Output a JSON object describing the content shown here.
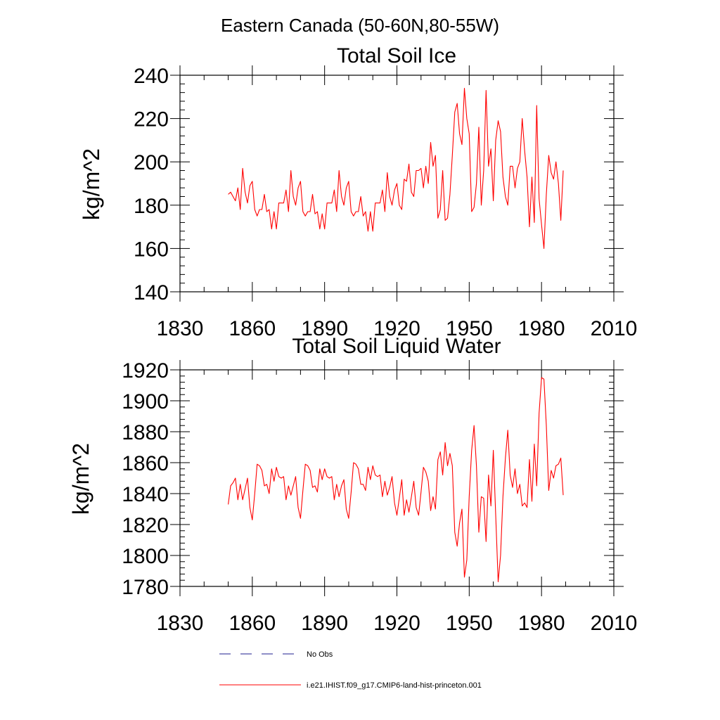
{
  "page": {
    "title": "Eastern Canada (50-60N,80-55W)"
  },
  "legend": {
    "items": [
      {
        "label": "No Obs",
        "color": "#1f1f8f",
        "style": "dashed"
      },
      {
        "label": "i.e21.IHIST.f09_g17.CMIP6-land-hist-princeton.001",
        "color": "#ff0000",
        "style": "solid"
      }
    ]
  },
  "chart_data": [
    {
      "type": "line",
      "title": "Total Soil Ice",
      "ylabel": "kg/m^2",
      "xlim": [
        1830,
        2010
      ],
      "ylim": [
        140,
        240
      ],
      "xticks": [
        1830,
        1860,
        1890,
        1920,
        1950,
        1980,
        2010
      ],
      "yticks": [
        140,
        160,
        180,
        200,
        220,
        240
      ],
      "grid": false,
      "series": [
        {
          "name": "i.e21.IHIST.f09_g17.CMIP6-land-hist-princeton.001",
          "color": "#ff0000",
          "x_start": 1850,
          "x_step": 1,
          "values": [
            185,
            186,
            184,
            182,
            188,
            178,
            197,
            186,
            181,
            189,
            191,
            178,
            175,
            178,
            178,
            185,
            177,
            178,
            169,
            177,
            169,
            181,
            181,
            181,
            187,
            177,
            196,
            184,
            180,
            188,
            191,
            177,
            175,
            177,
            177,
            185,
            176,
            177,
            169,
            176,
            169,
            181,
            181,
            181,
            187,
            177,
            196,
            184,
            180,
            188,
            191,
            177,
            175,
            177,
            177,
            184,
            175,
            177,
            168,
            177,
            168,
            181,
            181,
            181,
            187,
            177,
            195,
            184,
            180,
            187,
            190,
            180,
            178,
            192,
            191,
            199,
            186,
            184,
            196,
            196,
            197,
            188,
            198,
            190,
            209,
            198,
            203,
            174,
            178,
            196,
            173,
            174,
            185,
            203,
            223,
            227,
            213,
            208,
            234,
            220,
            213,
            177,
            179,
            190,
            216,
            180,
            196,
            233,
            198,
            206,
            182,
            210,
            219,
            214,
            193,
            184,
            180,
            198,
            198,
            188,
            197,
            200,
            220,
            205,
            193,
            170,
            193,
            172,
            226,
            183,
            171,
            160,
            185,
            203,
            195,
            192,
            200,
            190,
            173,
            196
          ]
        }
      ]
    },
    {
      "type": "line",
      "title": "Total Soil Liquid Water",
      "ylabel": "kg/m^2",
      "xlim": [
        1830,
        2010
      ],
      "ylim": [
        1780,
        1920
      ],
      "xticks": [
        1830,
        1860,
        1890,
        1920,
        1950,
        1980,
        2010
      ],
      "yticks": [
        1780,
        1800,
        1820,
        1840,
        1860,
        1880,
        1900,
        1920
      ],
      "grid": false,
      "series": [
        {
          "name": "i.e21.IHIST.f09_g17.CMIP6-land-hist-princeton.001",
          "color": "#ff0000",
          "x_start": 1850,
          "x_step": 1,
          "values": [
            1833,
            1845,
            1847,
            1850,
            1836,
            1846,
            1836,
            1843,
            1850,
            1831,
            1823,
            1840,
            1859,
            1858,
            1855,
            1845,
            1846,
            1840,
            1856,
            1848,
            1857,
            1851,
            1850,
            1851,
            1836,
            1845,
            1839,
            1845,
            1851,
            1831,
            1824,
            1842,
            1859,
            1858,
            1855,
            1844,
            1845,
            1841,
            1856,
            1849,
            1856,
            1851,
            1850,
            1851,
            1836,
            1846,
            1838,
            1845,
            1849,
            1830,
            1824,
            1841,
            1860,
            1859,
            1856,
            1846,
            1846,
            1842,
            1857,
            1849,
            1858,
            1852,
            1851,
            1852,
            1838,
            1848,
            1839,
            1844,
            1851,
            1834,
            1826,
            1837,
            1849,
            1826,
            1836,
            1828,
            1838,
            1848,
            1831,
            1826,
            1841,
            1857,
            1854,
            1848,
            1829,
            1838,
            1830,
            1862,
            1867,
            1852,
            1873,
            1858,
            1866,
            1858,
            1815,
            1806,
            1821,
            1830,
            1786,
            1797,
            1838,
            1868,
            1884,
            1858,
            1815,
            1838,
            1837,
            1809,
            1852,
            1832,
            1868,
            1826,
            1783,
            1800,
            1838,
            1863,
            1881,
            1852,
            1844,
            1856,
            1840,
            1846,
            1832,
            1834,
            1831,
            1862,
            1835,
            1872,
            1845,
            1892,
            1915,
            1914,
            1884,
            1842,
            1855,
            1850,
            1858,
            1859,
            1863,
            1839
          ]
        }
      ]
    }
  ]
}
